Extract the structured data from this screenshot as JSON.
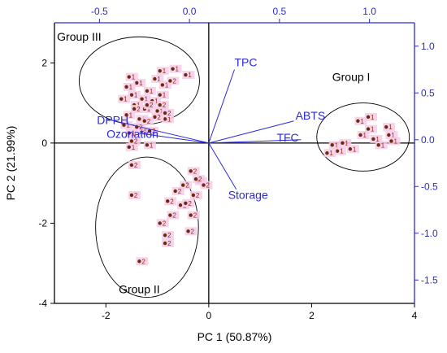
{
  "chart_data": {
    "type": "scatter",
    "xlabel": "PC 1 (50.87%)",
    "ylabel": "PC 2 (21.99%)",
    "xlim": [
      -3,
      4
    ],
    "ylim": [
      -4,
      3
    ],
    "secondary_xlim": [
      -0.75,
      1.25
    ],
    "secondary_ylim": [
      -1.75,
      1.25
    ],
    "bottom_ticks": [
      {
        "v": -2,
        "label": "-2"
      },
      {
        "v": 0,
        "label": "0"
      },
      {
        "v": 2,
        "label": "2"
      },
      {
        "v": 4,
        "label": "4"
      }
    ],
    "left_ticks": [
      {
        "v": -4,
        "label": "-4"
      },
      {
        "v": -2,
        "label": "-2"
      },
      {
        "v": 0,
        "label": "0"
      },
      {
        "v": 2,
        "label": "2"
      }
    ],
    "top_ticks": [
      {
        "v": -0.5,
        "label": "-0.5"
      },
      {
        "v": 0.0,
        "label": "0.0"
      },
      {
        "v": 0.5,
        "label": "0.5"
      },
      {
        "v": 1.0,
        "label": "1.0"
      }
    ],
    "right_ticks": [
      {
        "v": 1.0,
        "label": "1.0"
      },
      {
        "v": 0.5,
        "label": "0.5"
      },
      {
        "v": 0.0,
        "label": "0.0"
      },
      {
        "v": -0.5,
        "label": "-0.5"
      },
      {
        "v": -1.0,
        "label": "-1.0"
      },
      {
        "v": -1.5,
        "label": "-1.5"
      }
    ],
    "loadings": [
      {
        "name": "TPC",
        "x": 0.25,
        "y": 0.75
      },
      {
        "name": "ABTS",
        "x": 0.58,
        "y": 0.2
      },
      {
        "name": "TFC",
        "x": 0.62,
        "y": 0.0
      },
      {
        "name": "Storage",
        "x": 0.26,
        "y": -0.53
      },
      {
        "name": "Ozonation",
        "x": -0.28,
        "y": 0.07
      },
      {
        "name": "DPPH",
        "x": -0.46,
        "y": 0.22
      }
    ],
    "groups": [
      {
        "name": "Group I",
        "cx": 3.0,
        "cy": 0.15,
        "rx": 0.9,
        "ry": 0.85,
        "label_x": 2.4,
        "label_y": 1.55
      },
      {
        "name": "Group II",
        "cx": -1.2,
        "cy": -2.1,
        "rx": 1.0,
        "ry": 1.75,
        "label_x": -1.75,
        "label_y": -3.75
      },
      {
        "name": "Group III",
        "cx": -1.35,
        "cy": 1.55,
        "rx": 1.17,
        "ry": 1.1,
        "label_x": -2.95,
        "label_y": 2.55
      }
    ],
    "series": [
      {
        "label": "1",
        "points": [
          {
            "x": -1.4,
            "y": 1.5
          },
          {
            "x": -1.2,
            "y": 1.3
          },
          {
            "x": -1.05,
            "y": 1.6
          },
          {
            "x": -0.9,
            "y": 1.45
          },
          {
            "x": -1.6,
            "y": 1.4
          },
          {
            "x": -1.5,
            "y": 1.2
          },
          {
            "x": -1.3,
            "y": 1.1
          },
          {
            "x": -1.1,
            "y": 1.05
          },
          {
            "x": -0.95,
            "y": 1.2
          },
          {
            "x": -1.7,
            "y": 1.1
          },
          {
            "x": -1.45,
            "y": 0.95
          },
          {
            "x": -1.25,
            "y": 0.85
          },
          {
            "x": -1.0,
            "y": 0.8
          },
          {
            "x": -1.6,
            "y": 0.7
          },
          {
            "x": -1.35,
            "y": 0.6
          },
          {
            "x": -0.85,
            "y": 0.6
          },
          {
            "x": -1.65,
            "y": 0.45
          },
          {
            "x": -1.55,
            "y": 0.25
          },
          {
            "x": -1.3,
            "y": 0.3
          },
          {
            "x": -1.55,
            "y": -0.1
          },
          {
            "x": -1.2,
            "y": -0.05
          },
          {
            "x": -0.95,
            "y": 1.8
          },
          {
            "x": -0.7,
            "y": 1.85
          },
          {
            "x": -0.45,
            "y": 1.7
          },
          {
            "x": -1.55,
            "y": 1.65
          },
          {
            "x": 2.4,
            "y": -0.05
          },
          {
            "x": 2.6,
            "y": 0.0
          },
          {
            "x": 2.75,
            "y": -0.15
          },
          {
            "x": 2.95,
            "y": 0.2
          },
          {
            "x": 3.1,
            "y": 0.35
          },
          {
            "x": 3.3,
            "y": -0.05
          },
          {
            "x": 3.5,
            "y": 0.2
          },
          {
            "x": 3.55,
            "y": 0.05
          },
          {
            "x": 2.9,
            "y": 0.55
          },
          {
            "x": 3.1,
            "y": 0.65
          },
          {
            "x": 2.5,
            "y": -0.2
          },
          {
            "x": 2.3,
            "y": -0.25
          },
          {
            "x": 3.2,
            "y": 0.1
          },
          {
            "x": 3.45,
            "y": 0.4
          }
        ]
      },
      {
        "label": "2",
        "points": [
          {
            "x": -1.45,
            "y": 0.85
          },
          {
            "x": -1.2,
            "y": 0.95
          },
          {
            "x": -0.95,
            "y": 0.95
          },
          {
            "x": -1.05,
            "y": 0.65
          },
          {
            "x": -0.85,
            "y": 0.75
          },
          {
            "x": -1.4,
            "y": 0.4
          },
          {
            "x": -1.15,
            "y": 0.3
          },
          {
            "x": -1.5,
            "y": 0.05
          },
          {
            "x": -1.25,
            "y": 0.55
          },
          {
            "x": -0.75,
            "y": 1.55
          },
          {
            "x": -1.5,
            "y": -0.55
          },
          {
            "x": -1.5,
            "y": -1.3
          },
          {
            "x": -0.35,
            "y": -0.7
          },
          {
            "x": -0.2,
            "y": -0.95
          },
          {
            "x": -0.5,
            "y": -1.05
          },
          {
            "x": -0.65,
            "y": -1.2
          },
          {
            "x": -0.8,
            "y": -1.45
          },
          {
            "x": -0.3,
            "y": -1.3
          },
          {
            "x": -0.55,
            "y": -1.55
          },
          {
            "x": -0.75,
            "y": -1.8
          },
          {
            "x": -0.95,
            "y": -2.0
          },
          {
            "x": -0.35,
            "y": -1.8
          },
          {
            "x": -0.85,
            "y": -2.3
          },
          {
            "x": -0.85,
            "y": -2.5
          },
          {
            "x": -0.4,
            "y": -2.2
          },
          {
            "x": -1.35,
            "y": -2.95
          },
          {
            "x": -0.1,
            "y": -1.05
          },
          {
            "x": -0.45,
            "y": -1.5
          },
          {
            "x": -0.25,
            "y": -0.9
          }
        ]
      }
    ]
  }
}
